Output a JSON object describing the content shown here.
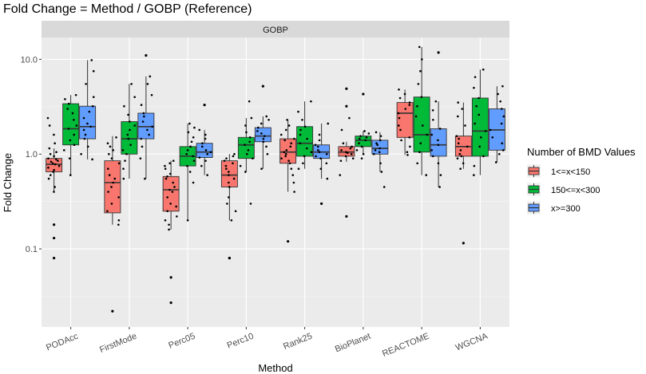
{
  "chart_data": {
    "type": "box",
    "title": "Fold Change = Method / GOBP (Reference)",
    "facet_label": "GOBP",
    "xlabel": "Method",
    "ylabel": "Fold Change",
    "y_scale": "log10",
    "ylim": [
      0.015,
      17
    ],
    "y_ticks": [
      {
        "value": 0.1,
        "label": "0.1"
      },
      {
        "value": 1,
        "label": "1.0"
      },
      {
        "value": 10,
        "label": "10.0"
      }
    ],
    "categories": [
      "PODAcc",
      "FirstMode",
      "Perc05",
      "Perc10",
      "Rank25",
      "BioPlanet",
      "REACTOME",
      "WGCNA"
    ],
    "legend": {
      "title": "Number of BMD Values",
      "position": "right",
      "entries": [
        {
          "label": "1<=x<150",
          "color": "#F8766D"
        },
        {
          "label": "150<=x<300",
          "color": "#00BA38"
        },
        {
          "label": "x>=300",
          "color": "#619CFF"
        }
      ]
    },
    "series": [
      {
        "name": "1<=x<150",
        "color": "#F8766D",
        "boxes": [
          {
            "min": 0.4,
            "q1": 0.65,
            "median": 0.78,
            "q3": 0.9,
            "max": 1.15,
            "outliers": [
              0.18,
              0.13,
              0.08
            ],
            "points": [
              0.4,
              0.45,
              0.55,
              0.6,
              0.65,
              0.68,
              0.72,
              0.75,
              0.78,
              0.8,
              0.83,
              0.85,
              0.88,
              0.9,
              0.95,
              1.0,
              1.05,
              1.15,
              1.3,
              1.6,
              2.0,
              2.4
            ]
          },
          {
            "min": 0.18,
            "q1": 0.24,
            "median": 0.5,
            "q3": 0.85,
            "max": 1.55,
            "outliers": [
              0.022
            ],
            "points": [
              0.18,
              0.2,
              0.25,
              0.3,
              0.35,
              0.4,
              0.45,
              0.5,
              0.55,
              0.6,
              0.7,
              0.8,
              0.9,
              1.0,
              1.1,
              1.2,
              1.3,
              1.5
            ]
          },
          {
            "min": 0.16,
            "q1": 0.25,
            "median": 0.42,
            "q3": 0.58,
            "max": 0.85,
            "outliers": [
              0.05,
              0.027
            ],
            "points": [
              0.16,
              0.18,
              0.2,
              0.22,
              0.25,
              0.28,
              0.3,
              0.35,
              0.4,
              0.42,
              0.45,
              0.5,
              0.55,
              0.58,
              0.62,
              0.7,
              0.75,
              0.8,
              0.85
            ]
          },
          {
            "min": 0.2,
            "q1": 0.45,
            "median": 0.6,
            "q3": 0.85,
            "max": 1.0,
            "outliers": [
              0.08,
              0.08
            ],
            "points": [
              0.2,
              0.25,
              0.3,
              0.35,
              0.45,
              0.5,
              0.55,
              0.6,
              0.65,
              0.7,
              0.75,
              0.8,
              0.85,
              0.9,
              0.95,
              1.0
            ]
          },
          {
            "min": 0.4,
            "q1": 0.8,
            "median": 1.05,
            "q3": 1.45,
            "max": 2.3,
            "outliers": [
              0.12
            ],
            "points": [
              0.4,
              0.5,
              0.6,
              0.7,
              0.8,
              0.85,
              0.9,
              0.95,
              1.0,
              1.05,
              1.1,
              1.2,
              1.3,
              1.4,
              1.45,
              1.6,
              1.8,
              2.0,
              2.3
            ]
          },
          {
            "min": 0.83,
            "q1": 0.95,
            "median": 1.05,
            "q3": 1.2,
            "max": 1.35,
            "outliers": [
              0.22,
              4.9,
              3.2
            ],
            "points": [
              0.85,
              0.9,
              0.95,
              1.0,
              1.03,
              1.05,
              1.1,
              1.15,
              1.2,
              1.3,
              0.6,
              1.8,
              2.4
            ]
          },
          {
            "min": 0.98,
            "q1": 1.5,
            "median": 2.7,
            "q3": 3.5,
            "max": 4.8,
            "outliers": [],
            "points": [
              0.98,
              1.05,
              1.2,
              1.4,
              1.5,
              1.8,
              2.0,
              2.4,
              2.7,
              3.0,
              3.3,
              3.5,
              3.9,
              4.3,
              4.8
            ]
          },
          {
            "min": 0.7,
            "q1": 0.95,
            "median": 1.2,
            "q3": 1.55,
            "max": 3.5,
            "outliers": [
              0.115
            ],
            "points": [
              0.7,
              0.8,
              0.9,
              0.95,
              1.0,
              1.1,
              1.2,
              1.3,
              1.45,
              1.55,
              2.0,
              2.5,
              3.0,
              3.5
            ]
          }
        ]
      },
      {
        "name": "150<=x<300",
        "color": "#00BA38",
        "boxes": [
          {
            "min": 0.6,
            "q1": 1.25,
            "median": 1.85,
            "q3": 3.4,
            "max": 4.2,
            "outliers": [],
            "points": [
              0.6,
              0.9,
              1.1,
              1.25,
              1.4,
              1.6,
              1.85,
              2.0,
              2.3,
              2.7,
              3.0,
              3.4,
              3.8,
              4.2
            ]
          },
          {
            "min": 0.55,
            "q1": 1.0,
            "median": 1.45,
            "q3": 2.2,
            "max": 5.5,
            "outliers": [],
            "points": [
              0.55,
              0.7,
              0.85,
              1.0,
              1.1,
              1.25,
              1.45,
              1.6,
              1.8,
              2.0,
              2.2,
              2.6,
              3.2,
              4.0,
              5.5
            ]
          },
          {
            "min": 0.2,
            "q1": 0.75,
            "median": 0.95,
            "q3": 1.2,
            "max": 2.1,
            "outliers": [],
            "points": [
              0.2,
              0.5,
              0.65,
              0.75,
              0.85,
              0.95,
              1.0,
              1.1,
              1.2,
              1.35,
              1.5,
              1.7,
              1.9,
              2.1
            ]
          },
          {
            "min": 0.65,
            "q1": 0.9,
            "median": 1.25,
            "q3": 1.5,
            "max": 2.4,
            "outliers": [],
            "points": [
              0.3,
              0.65,
              0.75,
              0.9,
              1.0,
              1.1,
              1.25,
              1.35,
              1.5,
              1.7,
              2.0,
              2.4,
              3.6
            ]
          },
          {
            "min": 0.7,
            "q1": 0.95,
            "median": 1.3,
            "q3": 1.95,
            "max": 3.6,
            "outliers": [],
            "points": [
              0.7,
              0.8,
              0.95,
              1.05,
              1.15,
              1.3,
              1.45,
              1.6,
              1.8,
              1.95,
              2.3,
              2.8,
              3.6
            ]
          },
          {
            "min": 1.0,
            "q1": 1.2,
            "median": 1.4,
            "q3": 1.55,
            "max": 1.75,
            "outliers": [
              4.3
            ],
            "points": [
              1.0,
              1.1,
              1.2,
              1.3,
              1.4,
              1.45,
              1.5,
              1.55,
              1.65,
              1.75,
              0.9
            ]
          },
          {
            "min": 0.6,
            "q1": 1.05,
            "median": 1.6,
            "q3": 4.0,
            "max": 13.5,
            "outliers": [],
            "points": [
              0.6,
              0.8,
              1.05,
              1.3,
              1.6,
              2.0,
              2.5,
              3.2,
              4.0,
              5.5,
              7.5,
              10.0,
              13.5
            ]
          },
          {
            "min": 0.6,
            "q1": 0.95,
            "median": 1.75,
            "q3": 3.9,
            "max": 7.8,
            "outliers": [],
            "points": [
              0.6,
              0.75,
              0.95,
              1.2,
              1.5,
              1.75,
              2.1,
              2.6,
              3.2,
              3.9,
              5.0,
              6.5,
              7.8
            ]
          }
        ]
      },
      {
        "name": "x>=300",
        "color": "#619CFF",
        "boxes": [
          {
            "min": 0.88,
            "q1": 1.45,
            "median": 1.95,
            "q3": 3.2,
            "max": 9.8,
            "outliers": [],
            "points": [
              0.88,
              1.0,
              1.2,
              1.45,
              1.6,
              1.8,
              1.95,
              2.1,
              2.4,
              2.8,
              3.2,
              4.0,
              5.5,
              7.5,
              9.8
            ]
          },
          {
            "min": 0.55,
            "q1": 1.45,
            "median": 1.95,
            "q3": 2.7,
            "max": 6.6,
            "outliers": [
              11.0
            ],
            "points": [
              0.55,
              0.9,
              1.2,
              1.45,
              1.6,
              1.8,
              1.95,
              2.2,
              2.5,
              2.7,
              3.3,
              4.2,
              5.5,
              6.6
            ]
          },
          {
            "min": 0.6,
            "q1": 0.92,
            "median": 1.05,
            "q3": 1.3,
            "max": 1.8,
            "outliers": [
              3.3
            ],
            "points": [
              0.6,
              0.75,
              0.85,
              0.92,
              1.0,
              1.05,
              1.1,
              1.2,
              1.3,
              1.45,
              1.6,
              1.8
            ]
          },
          {
            "min": 0.7,
            "q1": 1.35,
            "median": 1.55,
            "q3": 1.9,
            "max": 2.5,
            "outliers": [
              5.2
            ],
            "points": [
              0.7,
              1.0,
              1.2,
              1.35,
              1.45,
              1.55,
              1.65,
              1.75,
              1.9,
              2.1,
              2.3,
              2.5
            ]
          },
          {
            "min": 0.55,
            "q1": 0.9,
            "median": 1.05,
            "q3": 1.25,
            "max": 2.1,
            "outliers": [
              0.3
            ],
            "points": [
              0.55,
              0.7,
              0.8,
              0.9,
              0.95,
              1.0,
              1.05,
              1.1,
              1.2,
              1.25,
              1.4,
              1.6,
              2.1
            ]
          },
          {
            "min": 0.65,
            "q1": 1.0,
            "median": 1.15,
            "q3": 1.4,
            "max": 1.7,
            "outliers": [],
            "points": [
              0.45,
              0.65,
              0.8,
              1.0,
              1.05,
              1.1,
              1.15,
              1.25,
              1.3,
              1.4,
              1.55,
              1.7
            ]
          },
          {
            "min": 0.45,
            "q1": 0.95,
            "median": 1.25,
            "q3": 1.85,
            "max": 3.6,
            "outliers": [
              11.8
            ],
            "points": [
              0.45,
              0.6,
              0.8,
              0.95,
              1.1,
              1.25,
              1.4,
              1.6,
              1.85,
              2.3,
              2.9,
              3.6
            ]
          },
          {
            "min": 0.82,
            "q1": 1.1,
            "median": 1.8,
            "q3": 3.0,
            "max": 5.2,
            "outliers": [],
            "points": [
              0.82,
              1.0,
              1.1,
              1.3,
              1.5,
              1.8,
              2.1,
              2.5,
              3.0,
              3.6,
              4.3,
              5.2
            ]
          }
        ]
      }
    ]
  }
}
